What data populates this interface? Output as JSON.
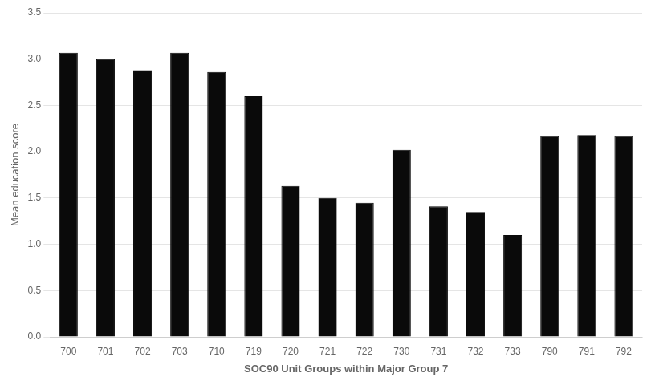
{
  "chart_data": {
    "type": "bar",
    "categories": [
      "700",
      "701",
      "702",
      "703",
      "710",
      "719",
      "720",
      "721",
      "722",
      "730",
      "731",
      "732",
      "733",
      "790",
      "791",
      "792"
    ],
    "values": [
      3.07,
      3.0,
      2.88,
      3.07,
      2.86,
      2.6,
      1.63,
      1.5,
      1.45,
      2.02,
      1.41,
      1.35,
      1.1,
      2.17,
      2.18,
      2.17
    ],
    "color": "#0a0a0a",
    "xlabel": "SOC90 Unit Groups within Major Group 7",
    "ylabel": "Mean education score",
    "ylim": [
      0,
      3.5
    ],
    "yticks": [
      {
        "value": 0,
        "label": "0.0"
      },
      0.5,
      {
        "value": 1,
        "label": "1.0"
      },
      1.5,
      {
        "value": 2,
        "label": "2.0"
      },
      2.5,
      {
        "value": 3,
        "label": "3.0"
      },
      3.5
    ],
    "grid": true
  }
}
